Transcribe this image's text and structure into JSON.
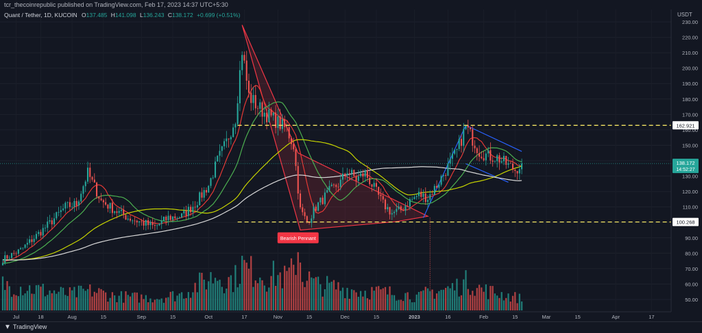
{
  "header": {
    "publisher": "tcr_thecoinrepublic published on TradingView.com, Feb 17, 2023 14:37 UTC+5:30"
  },
  "legend": {
    "symbol": "Quant / Tether, 1D, KUCOIN",
    "ohlc": [
      {
        "k": "O",
        "v": "137.485"
      },
      {
        "k": "H",
        "v": "141.098"
      },
      {
        "k": "L",
        "v": "136.243"
      },
      {
        "k": "C",
        "v": "138.172"
      }
    ],
    "change": "+0.699 (+0.51%)"
  },
  "footer": {
    "brand": "TradingView"
  },
  "colors": {
    "bg": "#131722",
    "up": "#26a69a",
    "down": "#ef5350",
    "ma_white": "#d8d8d8",
    "ma_red": "#e53935",
    "ma_yellow": "#c7d400",
    "ma_green": "#4caf50",
    "level": "#f5e663",
    "pattern_red": "#f23645",
    "pattern_blue": "#2962ff"
  },
  "chart_data": {
    "type": "candlestick",
    "currency": "USDT",
    "ylim": [
      42,
      238
    ],
    "y_ticks": [
      50,
      60,
      70,
      80,
      90,
      100,
      110,
      120,
      130,
      140,
      150,
      160,
      170,
      180,
      190,
      200,
      210,
      220,
      230
    ],
    "x_ticks": [
      {
        "label": "Jul",
        "i": 6
      },
      {
        "label": "18",
        "i": 17
      },
      {
        "label": "Aug",
        "i": 31
      },
      {
        "label": "15",
        "i": 45
      },
      {
        "label": "Sep",
        "i": 62
      },
      {
        "label": "15",
        "i": 76
      },
      {
        "label": "Oct",
        "i": 92
      },
      {
        "label": "17",
        "i": 108
      },
      {
        "label": "Nov",
        "i": 123
      },
      {
        "label": "15",
        "i": 137
      },
      {
        "label": "Dec",
        "i": 153
      },
      {
        "label": "15",
        "i": 167
      },
      {
        "label": "2023",
        "i": 184
      },
      {
        "label": "16",
        "i": 199
      },
      {
        "label": "Feb",
        "i": 215
      },
      {
        "label": "15",
        "i": 229
      },
      {
        "label": "Mar",
        "i": 243
      },
      {
        "label": "15",
        "i": 257
      },
      {
        "label": "Apr",
        "i": 274
      },
      {
        "label": "17",
        "i": 290
      }
    ],
    "n_days": 300,
    "last_index": 232,
    "last_price": 138.172,
    "countdown": "14:52:27",
    "levels": [
      162.921,
      100.268
    ],
    "annotation": {
      "label": "Bearish Pennant",
      "i": 132,
      "price": 90
    },
    "price_anchors": [
      [
        0,
        76
      ],
      [
        8,
        82
      ],
      [
        14,
        90
      ],
      [
        20,
        98
      ],
      [
        28,
        110
      ],
      [
        33,
        112
      ],
      [
        38,
        132
      ],
      [
        44,
        114
      ],
      [
        50,
        108
      ],
      [
        56,
        103
      ],
      [
        62,
        100
      ],
      [
        68,
        97
      ],
      [
        74,
        103
      ],
      [
        80,
        104
      ],
      [
        86,
        112
      ],
      [
        92,
        124
      ],
      [
        96,
        140
      ],
      [
        100,
        152
      ],
      [
        104,
        168
      ],
      [
        107,
        212
      ],
      [
        110,
        182
      ],
      [
        114,
        175
      ],
      [
        118,
        170
      ],
      [
        122,
        166
      ],
      [
        127,
        160
      ],
      [
        130,
        150
      ],
      [
        133,
        108
      ],
      [
        136,
        100
      ],
      [
        140,
        110
      ],
      [
        146,
        120
      ],
      [
        151,
        126
      ],
      [
        154,
        134
      ],
      [
        158,
        128
      ],
      [
        162,
        132
      ],
      [
        166,
        122
      ],
      [
        170,
        112
      ],
      [
        174,
        106
      ],
      [
        178,
        108
      ],
      [
        182,
        114
      ],
      [
        186,
        118
      ],
      [
        190,
        116
      ],
      [
        194,
        124
      ],
      [
        199,
        136
      ],
      [
        203,
        146
      ],
      [
        207,
        162
      ],
      [
        210,
        154
      ],
      [
        213,
        146
      ],
      [
        217,
        143
      ],
      [
        221,
        142
      ],
      [
        225,
        138
      ],
      [
        229,
        134
      ],
      [
        232,
        138
      ]
    ],
    "volume_anchors": [
      [
        0,
        0.4
      ],
      [
        10,
        0.35
      ],
      [
        20,
        0.3
      ],
      [
        30,
        0.25
      ],
      [
        40,
        0.3
      ],
      [
        50,
        0.22
      ],
      [
        60,
        0.2
      ],
      [
        70,
        0.2
      ],
      [
        80,
        0.25
      ],
      [
        90,
        0.45
      ],
      [
        96,
        0.55
      ],
      [
        100,
        0.45
      ],
      [
        104,
        0.5
      ],
      [
        107,
        0.7
      ],
      [
        110,
        0.6
      ],
      [
        114,
        0.6
      ],
      [
        118,
        0.5
      ],
      [
        122,
        0.55
      ],
      [
        126,
        0.5
      ],
      [
        130,
        0.6
      ],
      [
        132,
        1.0
      ],
      [
        134,
        0.55
      ],
      [
        140,
        0.4
      ],
      [
        150,
        0.35
      ],
      [
        160,
        0.3
      ],
      [
        170,
        0.28
      ],
      [
        180,
        0.25
      ],
      [
        186,
        0.2
      ],
      [
        190,
        0.28
      ],
      [
        198,
        0.32
      ],
      [
        204,
        0.38
      ],
      [
        208,
        0.45
      ],
      [
        214,
        0.32
      ],
      [
        222,
        0.26
      ],
      [
        232,
        0.18
      ]
    ],
    "moving_averages": [
      {
        "color": "#e53935",
        "period": 9
      },
      {
        "color": "#4caf50",
        "period": 20
      },
      {
        "color": "#c7d400",
        "period": 50
      },
      {
        "color": "#d8d8d8",
        "period": 100
      }
    ],
    "patterns": [
      {
        "color": "#f23645",
        "fill": true,
        "points": [
          [
            107,
            228
          ],
          [
            133,
            95
          ],
          [
            176,
            100.5
          ],
          [
            190,
            104
          ],
          [
            132,
            145
          ]
        ]
      },
      {
        "color": "#2962ff",
        "fill": false,
        "points": [
          [
            188,
            103
          ],
          [
            207,
            163
          ],
          [
            232,
            146
          ]
        ]
      },
      {
        "color": "#2962ff",
        "fill": false,
        "points": [
          [
            207,
            138
          ],
          [
            226,
            126
          ]
        ]
      }
    ]
  }
}
